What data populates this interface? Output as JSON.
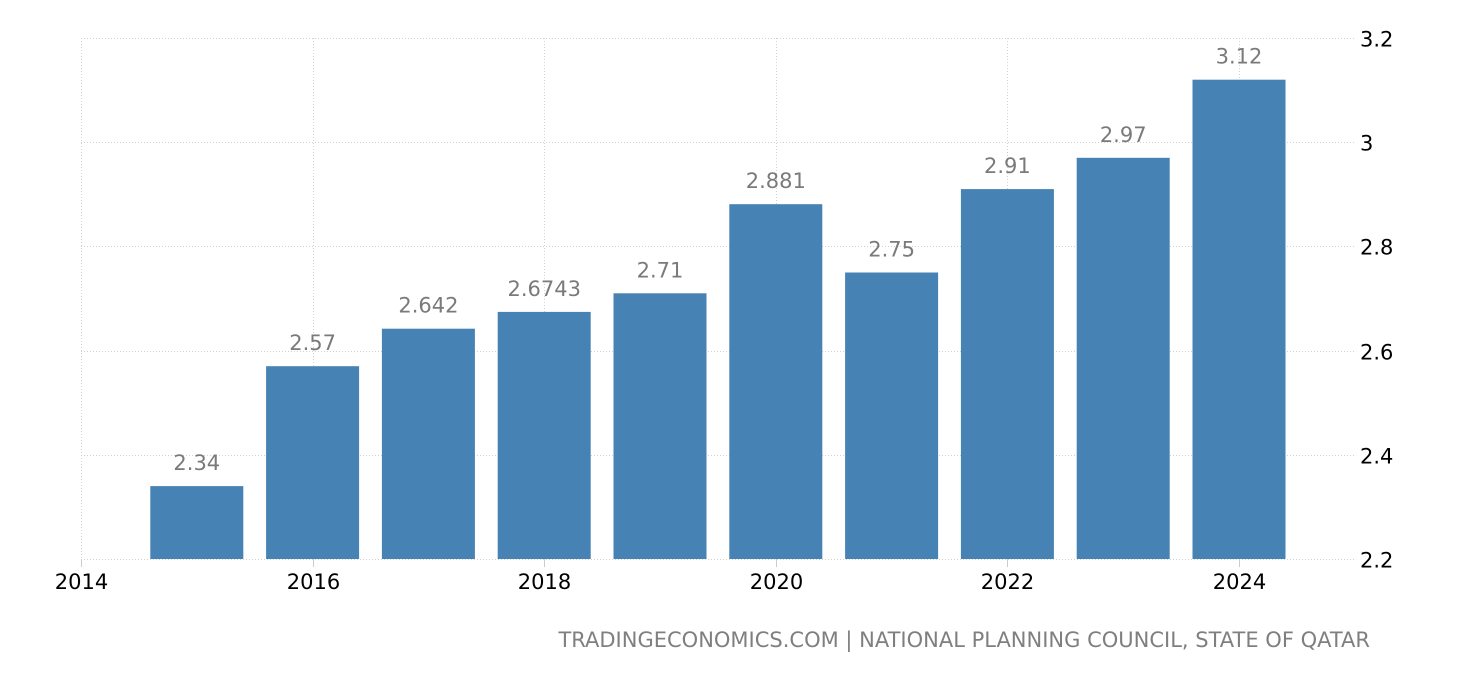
{
  "chart_data": {
    "type": "bar",
    "title": "",
    "xlabel": "",
    "ylabel": "",
    "categories": [
      "2015",
      "2016",
      "2017",
      "2018",
      "2019",
      "2020",
      "2021",
      "2022",
      "2023",
      "2024"
    ],
    "values": [
      2.34,
      2.57,
      2.642,
      2.6743,
      2.71,
      2.881,
      2.75,
      2.91,
      2.97,
      3.12
    ],
    "value_labels": [
      "2.34",
      "2.57",
      "2.642",
      "2.6743",
      "2.71",
      "2.881",
      "2.75",
      "2.91",
      "2.97",
      "3.12"
    ],
    "x_ticks": [
      "2014",
      "2016",
      "2018",
      "2020",
      "2022",
      "2024"
    ],
    "y_ticks": [
      "2.2",
      "2.4",
      "2.6",
      "2.8",
      "3",
      "3.2"
    ],
    "ylim": [
      2.2,
      3.2
    ],
    "xlim": [
      2014,
      2025
    ],
    "grid": true,
    "y_axis_position": "right",
    "legend": null,
    "bar_color": "#4682b4"
  },
  "footer": {
    "source": "TRADINGECONOMICS.COM | NATIONAL PLANNING COUNCIL, STATE OF QATAR"
  }
}
